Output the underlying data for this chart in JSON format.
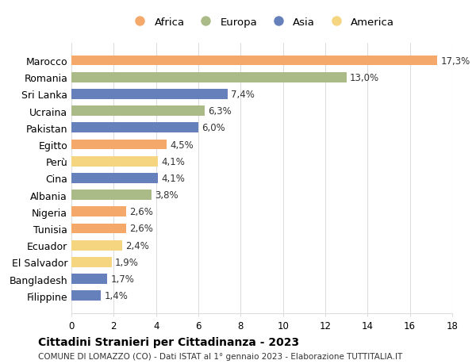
{
  "categories": [
    "Marocco",
    "Romania",
    "Sri Lanka",
    "Ucraina",
    "Pakistan",
    "Egitto",
    "Perù",
    "Cina",
    "Albania",
    "Nigeria",
    "Tunisia",
    "Ecuador",
    "El Salvador",
    "Bangladesh",
    "Filippine"
  ],
  "values": [
    17.3,
    13.0,
    7.4,
    6.3,
    6.0,
    4.5,
    4.1,
    4.1,
    3.8,
    2.6,
    2.6,
    2.4,
    1.9,
    1.7,
    1.4
  ],
  "labels": [
    "17,3%",
    "13,0%",
    "7,4%",
    "6,3%",
    "6,0%",
    "4,5%",
    "4,1%",
    "4,1%",
    "3,8%",
    "2,6%",
    "2,6%",
    "2,4%",
    "1,9%",
    "1,7%",
    "1,4%"
  ],
  "continents": [
    "Africa",
    "Europa",
    "Asia",
    "Europa",
    "Asia",
    "Africa",
    "America",
    "Asia",
    "Europa",
    "Africa",
    "Africa",
    "America",
    "America",
    "Asia",
    "Asia"
  ],
  "colors": {
    "Africa": "#F4A96A",
    "Europa": "#AABB88",
    "Asia": "#6680BB",
    "America": "#F5D580"
  },
  "legend_order": [
    "Africa",
    "Europa",
    "Asia",
    "America"
  ],
  "title": "Cittadini Stranieri per Cittadinanza - 2023",
  "subtitle": "COMUNE DI LOMAZZO (CO) - Dati ISTAT al 1° gennaio 2023 - Elaborazione TUTTITALIA.IT",
  "xlim": [
    0,
    18
  ],
  "xticks": [
    0,
    2,
    4,
    6,
    8,
    10,
    12,
    14,
    16,
    18
  ],
  "background_color": "#ffffff",
  "grid_color": "#dddddd"
}
